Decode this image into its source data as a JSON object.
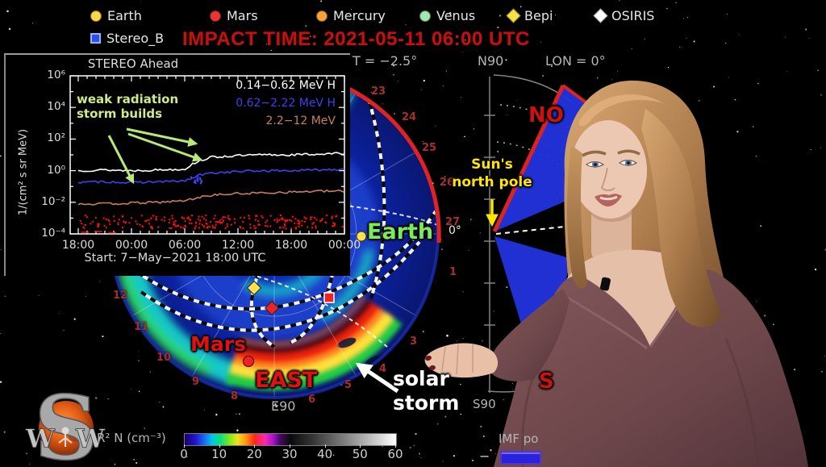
{
  "header": {
    "impact_time": "IMPACT TIME: 2021-05-11 06:00 UTC",
    "impact_color": "#c11212",
    "legend": [
      {
        "name": "earth",
        "label": "Earth",
        "shape": "circle",
        "color": "#ffd54a"
      },
      {
        "name": "mars",
        "label": "Mars",
        "shape": "circle",
        "color": "#ee3333"
      },
      {
        "name": "mercury",
        "label": "Mercury",
        "shape": "circle",
        "color": "#f5a33a"
      },
      {
        "name": "venus",
        "label": "Venus",
        "shape": "circle",
        "color": "#9fe8b0"
      },
      {
        "name": "bepi",
        "label": "Bepi",
        "shape": "diamond",
        "color": "#f5e049"
      },
      {
        "name": "osiris",
        "label": "OSIRIS",
        "shape": "diamond",
        "color": "#ffffff"
      }
    ],
    "legend_row2": [
      {
        "name": "stereo_b",
        "label": "Stereo_B",
        "shape": "square",
        "color": "#2a50e8"
      }
    ]
  },
  "inset_chart": {
    "title": "STEREO Ahead",
    "ylabel": "1/(cm² s sr MeV)",
    "y_ticks": [
      "10⁶",
      "10⁴",
      "10²",
      "10⁰",
      "10⁻²",
      "10⁻⁴"
    ],
    "x_ticks": [
      "18:00",
      "00:00",
      "06:00",
      "12:00",
      "18:00",
      "00:00"
    ],
    "start_label": "Start:  7−May−2021 18:00 UTC",
    "annotation": "weak radiation\nstorm builds",
    "annotation_color": "#cdea8c",
    "legend": [
      {
        "label": "0.14−0.62 MeV H",
        "color": "#ffffff"
      },
      {
        "label": "0.62−2.22 MeV H",
        "color": "#4040f0"
      },
      {
        "label": "2.2−12 MeV",
        "color": "#c97f5e"
      }
    ]
  },
  "chart_data": [
    {
      "type": "line",
      "title": "STEREO Ahead",
      "ylabel": "1/(cm² s sr MeV)",
      "xlabel": "Start: 7−May−2021 18:00 UTC",
      "x_tick_labels": [
        "18:00",
        "00:00",
        "06:00",
        "12:00",
        "18:00",
        "00:00"
      ],
      "x_hours_range": [
        0,
        30
      ],
      "y_log10_range": [
        -4,
        6
      ],
      "grid": false,
      "legend_position": "top-right",
      "series": [
        {
          "name": "0.14−0.62 MeV H",
          "color": "#ffffff",
          "style": "line",
          "x_hours": [
            0,
            3,
            6,
            9,
            12,
            13,
            13.5,
            15,
            18,
            21,
            24,
            27,
            30
          ],
          "log10_flux": [
            0.0,
            0.05,
            0.0,
            0.05,
            0.1,
            0.45,
            0.6,
            0.85,
            0.95,
            1.0,
            1.0,
            1.05,
            1.1
          ]
        },
        {
          "name": "0.62−2.22 MeV H",
          "color": "#4040f0",
          "style": "line",
          "x_hours": [
            0,
            3,
            6,
            9,
            12,
            13,
            13.5,
            15,
            18,
            21,
            24,
            27,
            30
          ],
          "log10_flux": [
            -0.75,
            -0.7,
            -0.75,
            -0.7,
            -0.65,
            -0.45,
            -0.3,
            -0.15,
            -0.05,
            0.0,
            0.0,
            0.05,
            0.1
          ]
        },
        {
          "name": "2.2−12 MeV",
          "color": "#c97f5e",
          "style": "line",
          "x_hours": [
            0,
            3,
            6,
            9,
            12,
            13.5,
            15,
            18,
            21,
            24,
            27,
            30
          ],
          "log10_flux": [
            -2.1,
            -2.1,
            -2.05,
            -2.0,
            -1.9,
            -1.7,
            -1.55,
            -1.45,
            -1.4,
            -1.35,
            -1.3,
            -1.3
          ]
        },
        {
          "name": "unlabeled red channel",
          "color": "#ee1111",
          "style": "scatter",
          "x_hours": [
            0,
            30
          ],
          "log10_flux": [
            -3.3,
            -3.2
          ]
        }
      ],
      "annotation": {
        "text": "weak radiation storm builds",
        "color": "#cdea8c"
      }
    },
    {
      "type": "heatmap",
      "labels": [
        "Earth",
        "Mars",
        "EAST",
        "E90",
        "solar storm",
        "Sun's north pole"
      ],
      "rim_day_ticks": [
        23,
        24,
        25,
        26,
        27,
        1,
        3,
        4,
        5,
        6,
        8,
        9,
        10,
        11,
        12
      ],
      "colorbar": {
        "label": "R² N (cm⁻³)",
        "ticks": [
          0,
          10,
          20,
          30,
          40,
          50,
          60
        ]
      },
      "side_panel": {
        "top": "N90",
        "bottom": "S90",
        "lon": "LON = 0°",
        "lat": "T = −2.5°"
      }
    }
  ],
  "map": {
    "earth_label": "Earth",
    "mars_label": "Mars",
    "east_label": "EAST",
    "e90_label": "E90",
    "sun_pole_label": "Sun's\nnorth pole",
    "solar_storm_label": "solar\nstorm",
    "zero_deg_label": "0°",
    "rim_days": [
      "23",
      "24",
      "25",
      "26",
      "27",
      "1",
      "3",
      "4",
      "5",
      "6",
      "8",
      "9",
      "10",
      "11",
      "12"
    ]
  },
  "meridional": {
    "n90": "N90",
    "s90": "S90",
    "lon_label": "LON = 0°",
    "lat_label": "T = −2.5°",
    "north_partial": "NO",
    "south_partial": "S"
  },
  "colorbar": {
    "label": "R² N (cm⁻³)",
    "ticks": [
      "0",
      "10",
      "20",
      "30",
      "40",
      "50",
      "60"
    ]
  },
  "imf": {
    "label": "IMF po",
    "minus": "−"
  },
  "logo": {
    "letter_s": "S",
    "letter_w1": "W",
    "letter_w2": "W"
  }
}
